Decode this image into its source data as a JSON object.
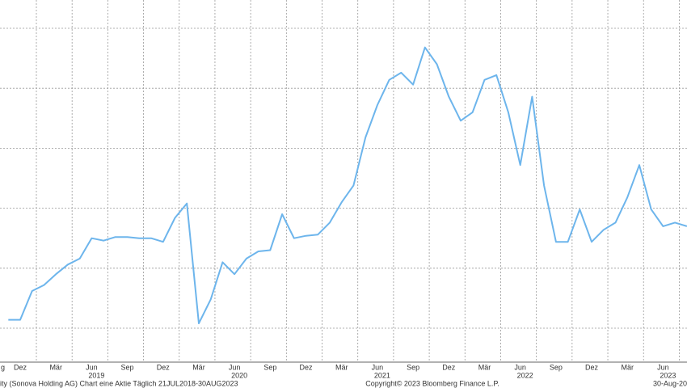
{
  "chart_data": {
    "type": "line",
    "footer_left": "ity (Sonova Holding AG) Chart eine Aktie  Täglich 21JUL2018-30AUG2023",
    "footer_center": "Copyright© 2023 Bloomberg Finance L.P.",
    "footer_right": "30-Aug-20",
    "edge_label": "g",
    "x": [
      "2018-11",
      "2018-12",
      "2019-01",
      "2019-02",
      "2019-03",
      "2019-04",
      "2019-05",
      "2019-06",
      "2019-07",
      "2019-08",
      "2019-09",
      "2019-10",
      "2019-11",
      "2019-12",
      "2020-01",
      "2020-02",
      "2020-03",
      "2020-04",
      "2020-05",
      "2020-06",
      "2020-07",
      "2020-08",
      "2020-09",
      "2020-10",
      "2020-11",
      "2020-12",
      "2021-01",
      "2021-02",
      "2021-03",
      "2021-04",
      "2021-05",
      "2021-06",
      "2021-07",
      "2021-08",
      "2021-09",
      "2021-10",
      "2021-11",
      "2021-12",
      "2022-01",
      "2022-02",
      "2022-03",
      "2022-04",
      "2022-05",
      "2022-06",
      "2022-07",
      "2022-08",
      "2022-09",
      "2022-10",
      "2022-11",
      "2022-12",
      "2023-01",
      "2023-02",
      "2023-03",
      "2023-04",
      "2023-05",
      "2023-06",
      "2023-07",
      "2023-08"
    ],
    "series": [
      {
        "name": "Sonova Holding AG",
        "color": "#6db5ec",
        "values": [
          157,
          157,
          181,
          186,
          195,
          203,
          208,
          225,
          223,
          226,
          226,
          225,
          225,
          222,
          242,
          254,
          154,
          174,
          205,
          195,
          208,
          214,
          215,
          245,
          225,
          227,
          228,
          238,
          255,
          269,
          309,
          336,
          357,
          363,
          353,
          384,
          370,
          343,
          323,
          330,
          357,
          361,
          330,
          286,
          343,
          269,
          222,
          222,
          249,
          222,
          232,
          238,
          259,
          286,
          249,
          235,
          238,
          235
        ]
      }
    ],
    "ylim": [
      150,
      400
    ],
    "ygrid": [
      150,
      200,
      250,
      300,
      350,
      400
    ],
    "xticks": [
      {
        "value": "2018-12",
        "label": "Dez"
      },
      {
        "value": "2019-03",
        "label": "Mär"
      },
      {
        "value": "2019-06",
        "label": "Jun"
      },
      {
        "value": "2019-09",
        "label": "Sep"
      },
      {
        "value": "2019-12",
        "label": "Dez"
      },
      {
        "value": "2020-03",
        "label": "Mär"
      },
      {
        "value": "2020-06",
        "label": "Jun"
      },
      {
        "value": "2020-09",
        "label": "Sep"
      },
      {
        "value": "2020-12",
        "label": "Dez"
      },
      {
        "value": "2021-03",
        "label": "Mär"
      },
      {
        "value": "2021-06",
        "label": "Jun"
      },
      {
        "value": "2021-09",
        "label": "Sep"
      },
      {
        "value": "2021-12",
        "label": "Dez"
      },
      {
        "value": "2022-03",
        "label": "Mär"
      },
      {
        "value": "2022-06",
        "label": "Jun"
      },
      {
        "value": "2022-09",
        "label": "Sep"
      },
      {
        "value": "2022-12",
        "label": "Dez"
      },
      {
        "value": "2023-03",
        "label": "Mär"
      },
      {
        "value": "2023-06",
        "label": "Jun"
      }
    ],
    "year_ticks": [
      {
        "value": "2019-06",
        "label": "2019"
      },
      {
        "value": "2020-06",
        "label": "2020"
      },
      {
        "value": "2021-06",
        "label": "2021"
      },
      {
        "value": "2022-06",
        "label": "2022"
      },
      {
        "value": "2023-06",
        "label": "2023"
      }
    ]
  }
}
